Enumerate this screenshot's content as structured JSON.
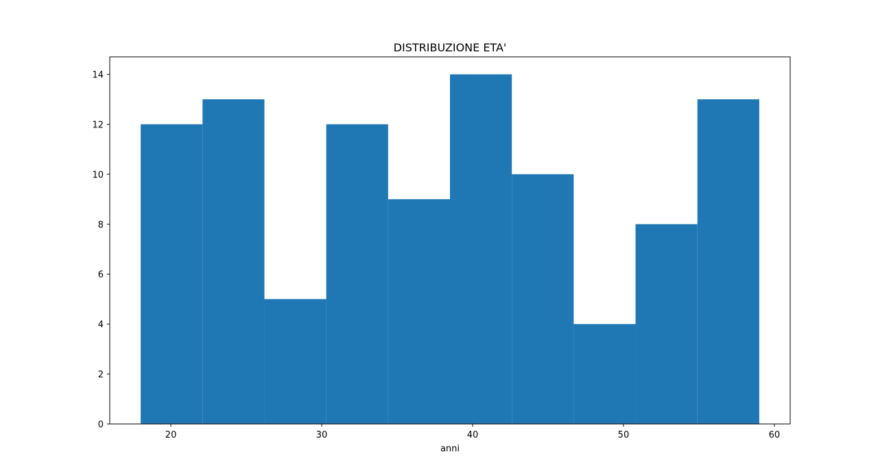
{
  "chart_data": {
    "type": "bar",
    "subtype": "histogram",
    "title": "DISTRIBUZIONE ETA'",
    "xlabel": "anni",
    "ylabel": "",
    "bin_edges": [
      18,
      22.1,
      26.2,
      30.3,
      34.4,
      38.5,
      42.6,
      46.7,
      50.8,
      54.9,
      59
    ],
    "values": [
      12,
      13,
      5,
      12,
      9,
      14,
      10,
      4,
      8,
      13
    ],
    "xlim": [
      15.95,
      61.05
    ],
    "ylim": [
      0,
      14.7
    ],
    "xticks": [
      20,
      30,
      40,
      50,
      60
    ],
    "yticks": [
      0,
      2,
      4,
      6,
      8,
      10,
      12,
      14
    ],
    "bar_color": "#1f77b4",
    "grid": false,
    "legend": "none"
  }
}
